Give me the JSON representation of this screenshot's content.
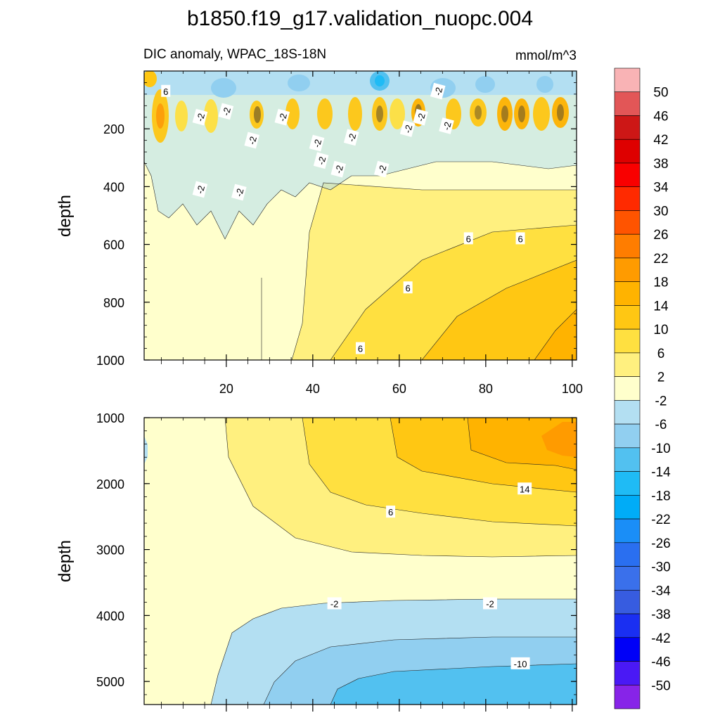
{
  "title": "b1850.f19_g17.validation_nuopc.004",
  "subtitle_left": "DIC anomaly, WPAC_18S-18N",
  "subtitle_right": "mmol/m^3",
  "chart_data": [
    {
      "type": "contour",
      "panel": "top",
      "ylabel": "depth",
      "xlim": [
        1,
        101
      ],
      "ylim": [
        1000,
        0
      ],
      "xticks": [
        20,
        40,
        60,
        80,
        100
      ],
      "yticks": [
        200,
        400,
        600,
        800,
        1000
      ],
      "contour_labels": [
        {
          "x": 6,
          "y": 70,
          "text": "6"
        },
        {
          "x": 14,
          "y": 160,
          "text": "-2"
        },
        {
          "x": 20,
          "y": 140,
          "text": "-2"
        },
        {
          "x": 26,
          "y": 240,
          "text": "-2"
        },
        {
          "x": 33,
          "y": 160,
          "text": "-2"
        },
        {
          "x": 41,
          "y": 250,
          "text": "-2"
        },
        {
          "x": 42,
          "y": 310,
          "text": "-2"
        },
        {
          "x": 46,
          "y": 340,
          "text": "-2"
        },
        {
          "x": 49,
          "y": 230,
          "text": "-2"
        },
        {
          "x": 56,
          "y": 340,
          "text": "-2"
        },
        {
          "x": 62,
          "y": 200,
          "text": "-2"
        },
        {
          "x": 65,
          "y": 160,
          "text": "-2"
        },
        {
          "x": 69,
          "y": 70,
          "text": "-2"
        },
        {
          "x": 71,
          "y": 190,
          "text": "-2"
        },
        {
          "x": 14,
          "y": 410,
          "text": "-2"
        },
        {
          "x": 23,
          "y": 420,
          "text": "-2"
        },
        {
          "x": 76,
          "y": 580,
          "text": "6"
        },
        {
          "x": 88,
          "y": 580,
          "text": "6"
        },
        {
          "x": 62,
          "y": 750,
          "text": "6"
        },
        {
          "x": 51,
          "y": 960,
          "text": "6"
        }
      ]
    },
    {
      "type": "contour",
      "panel": "bottom",
      "ylabel": "depth",
      "xlim": [
        1,
        101
      ],
      "ylim": [
        5350,
        1000
      ],
      "yticks": [
        1000,
        2000,
        3000,
        4000,
        5000
      ],
      "contour_labels": [
        {
          "x": 89,
          "y": 2080,
          "text": "14"
        },
        {
          "x": 58,
          "y": 2430,
          "text": "6"
        },
        {
          "x": 45,
          "y": 3820,
          "text": "-2"
        },
        {
          "x": 81,
          "y": 3820,
          "text": "-2"
        },
        {
          "x": 88,
          "y": 4730,
          "text": "-10"
        }
      ]
    }
  ],
  "colorbar": {
    "labels": [
      "50",
      "46",
      "42",
      "38",
      "34",
      "30",
      "26",
      "22",
      "18",
      "14",
      "10",
      "6",
      "2",
      "-2",
      "-6",
      "-10",
      "-14",
      "-18",
      "-22",
      "-26",
      "-30",
      "-34",
      "-38",
      "-42",
      "-46",
      "-50"
    ],
    "colors": [
      "#f9b3b5",
      "#e25657",
      "#cd1716",
      "#de0000",
      "#f90000",
      "#ff2a00",
      "#ff5400",
      "#ff7d00",
      "#ff9b00",
      "#ffb300",
      "#ffc713",
      "#ffe040",
      "#fff07f",
      "#ffffcc",
      "#b3dff2",
      "#91cff0",
      "#52c1f0",
      "#1fbbf5",
      "#00acf7",
      "#1a8ef7",
      "#2a6ff0",
      "#3a70eb",
      "#375ce0",
      "#1a2ff2",
      "#0000f7",
      "#4a19f5",
      "#8724e8"
    ]
  }
}
